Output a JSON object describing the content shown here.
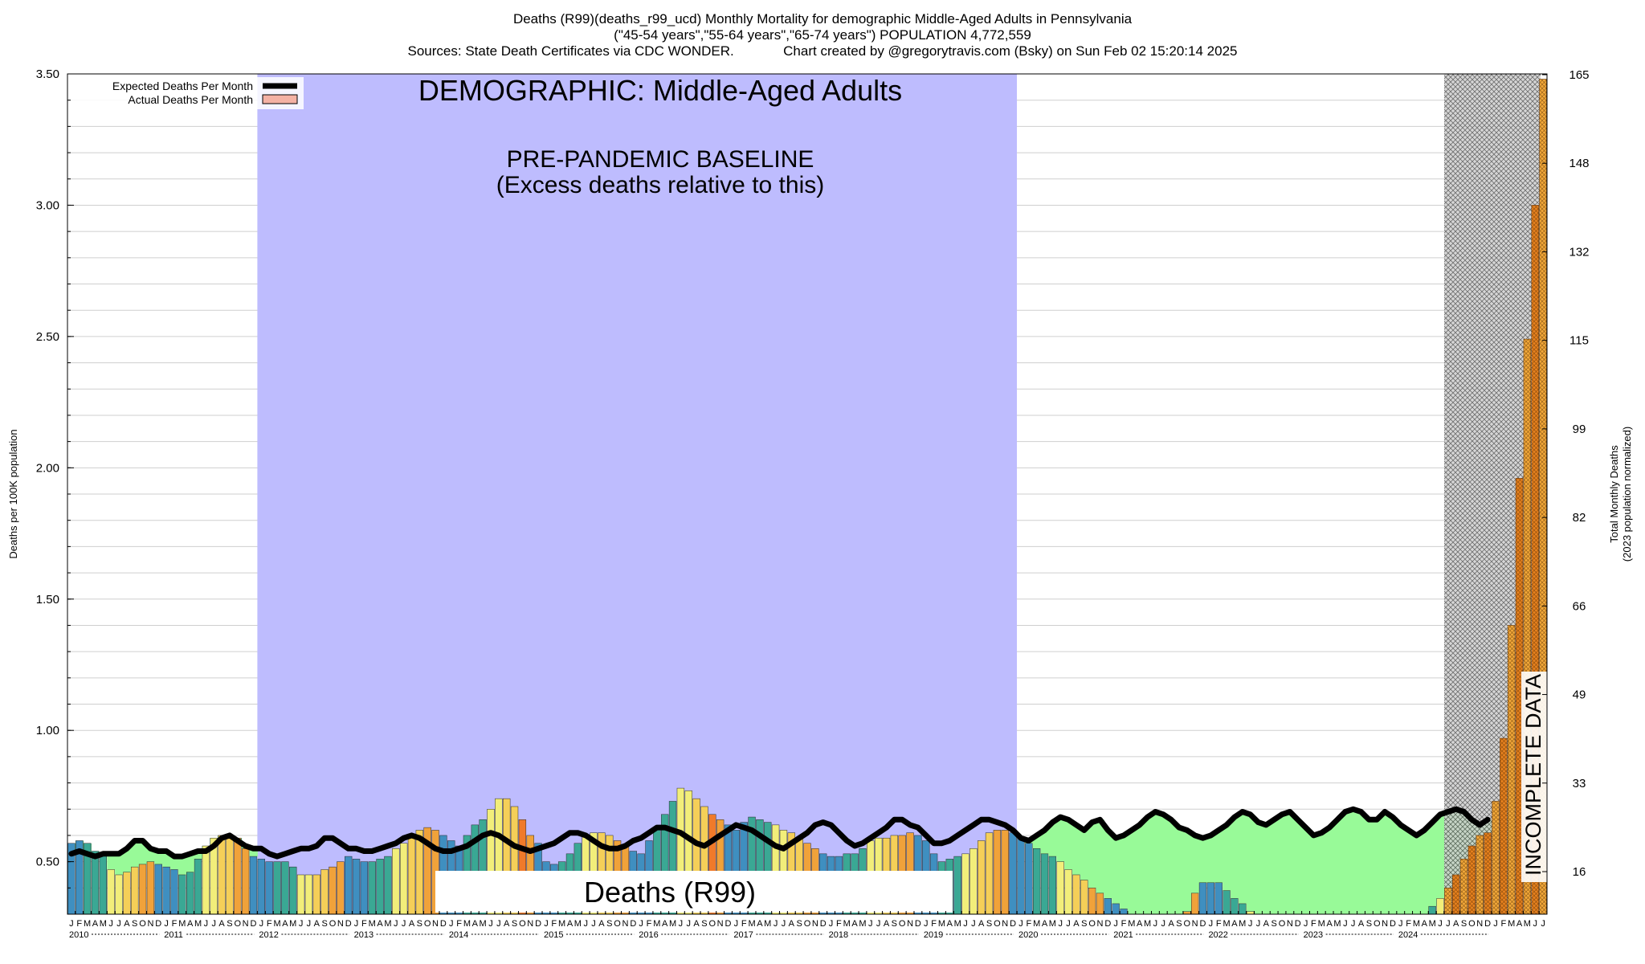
{
  "title": {
    "line1": "Deaths (R99)(deaths_r99_ucd) Monthly Mortality for demographic Middle-Aged Adults in Pennsylvania",
    "line2": "(\"45-54 years\",\"55-64 years\",\"65-74 years\") POPULATION 4,772,559",
    "line3": "Sources: State Death Certificates via CDC WONDER.             Chart created by @gregorytravis.com (Bsky) on Sun Feb 02 15:20:14 2025"
  },
  "overlay": {
    "demographic": "DEMOGRAPHIC: Middle-Aged Adults",
    "baseline_line1": "PRE-PANDEMIC BASELINE",
    "baseline_line2": "(Excess deaths relative to this)",
    "cause": "Deaths (R99)",
    "incomplete": "INCOMPLETE DATA"
  },
  "legend": {
    "expected": "Expected Deaths Per Month",
    "actual": "Actual Deaths Per Month"
  },
  "colors": {
    "baseline_region": "#bebcfe",
    "excess_fill": "#98fa98",
    "below_fill": "#70d8a0",
    "expected_line": "#000000",
    "incomplete_hatch": "#888888",
    "month_colors": [
      "#3f8fc0",
      "#3f8fc0",
      "#3aa894",
      "#3aa894",
      "#3aa894",
      "#f2ee7a",
      "#f2ee7a",
      "#f5cf58",
      "#f5cf58",
      "#f0a23a",
      "#f0a23a",
      "#3f8fc0"
    ]
  },
  "chart_data": {
    "type": "bar",
    "title": "Deaths (R99)(deaths_r99_ucd) Monthly Mortality for demographic Middle-Aged Adults in Pennsylvania",
    "ylabel": "Deaths per 100K population",
    "y2label_line1": "Total Monthly Deaths",
    "y2label_line2": "(2023 population normalized)",
    "ylim": [
      0.3,
      3.5
    ],
    "yticks": [
      "0.50",
      "1.00",
      "1.50",
      "2.00",
      "2.50",
      "3.00",
      "3.50"
    ],
    "y2ticks": [
      "16",
      "33",
      "49",
      "66",
      "82",
      "99",
      "115",
      "132",
      "148",
      "165"
    ],
    "grid": true,
    "legend_position": "top-left",
    "start": "2010-01",
    "month_letters": [
      "J",
      "F",
      "M",
      "A",
      "M",
      "J",
      "J",
      "A",
      "S",
      "O",
      "N",
      "D"
    ],
    "years": [
      "2010",
      "2011",
      "2012",
      "2013",
      "2014",
      "2015",
      "2016",
      "2017",
      "2018",
      "2019",
      "2020",
      "2021",
      "2022",
      "2023",
      "2024"
    ],
    "baseline_period": [
      "2012-01",
      "2019-12"
    ],
    "incomplete_from": "2024-07",
    "series": [
      {
        "name": "Actual Deaths Per Month",
        "values": [
          0.57,
          0.58,
          0.57,
          0.54,
          0.53,
          0.47,
          0.45,
          0.46,
          0.48,
          0.49,
          0.5,
          0.49,
          0.48,
          0.47,
          0.45,
          0.46,
          0.51,
          0.56,
          0.59,
          0.6,
          0.6,
          0.59,
          0.55,
          0.52,
          0.51,
          0.5,
          0.5,
          0.5,
          0.48,
          0.45,
          0.45,
          0.45,
          0.47,
          0.48,
          0.5,
          0.52,
          0.51,
          0.5,
          0.5,
          0.51,
          0.52,
          0.55,
          0.57,
          0.59,
          0.62,
          0.63,
          0.62,
          0.6,
          0.58,
          0.56,
          0.6,
          0.64,
          0.66,
          0.7,
          0.74,
          0.74,
          0.71,
          0.66,
          0.6,
          0.57,
          0.5,
          0.49,
          0.5,
          0.53,
          0.57,
          0.6,
          0.61,
          0.61,
          0.6,
          0.58,
          0.56,
          0.54,
          0.53,
          0.58,
          0.63,
          0.68,
          0.73,
          0.78,
          0.77,
          0.74,
          0.71,
          0.68,
          0.66,
          0.64,
          0.62,
          0.65,
          0.67,
          0.66,
          0.65,
          0.64,
          0.62,
          0.61,
          0.59,
          0.57,
          0.55,
          0.53,
          0.52,
          0.52,
          0.53,
          0.53,
          0.55,
          0.58,
          0.59,
          0.59,
          0.6,
          0.6,
          0.61,
          0.6,
          0.58,
          0.53,
          0.5,
          0.51,
          0.52,
          0.53,
          0.55,
          0.58,
          0.61,
          0.62,
          0.62,
          0.61,
          0.59,
          0.57,
          0.55,
          0.53,
          0.52,
          0.5,
          0.47,
          0.45,
          0.43,
          0.4,
          0.38,
          0.36,
          0.34,
          0.32,
          0.3,
          0.27,
          0.24,
          0.22,
          0.22,
          0.22,
          0.26,
          0.31,
          0.38,
          0.42,
          0.42,
          0.42,
          0.39,
          0.36,
          0.34,
          0.31,
          0.29,
          0.29,
          0.28,
          0.28,
          0.29,
          0.3,
          0.29,
          0.29,
          0.28,
          0.27,
          0.25,
          0.23,
          0.22,
          0.21,
          0.21,
          0.22,
          0.23,
          0.25,
          0.26,
          0.27,
          0.28,
          0.3,
          0.33,
          0.36,
          0.4,
          0.45,
          0.51,
          0.56,
          0.6,
          0.61,
          0.73,
          0.97,
          1.4,
          1.96,
          2.49,
          3.0,
          3.48
        ]
      },
      {
        "name": "Expected Deaths Per Month",
        "values": [
          0.53,
          0.54,
          0.53,
          0.52,
          0.53,
          0.53,
          0.53,
          0.55,
          0.58,
          0.58,
          0.55,
          0.54,
          0.54,
          0.52,
          0.52,
          0.53,
          0.54,
          0.54,
          0.56,
          0.59,
          0.6,
          0.58,
          0.56,
          0.55,
          0.55,
          0.53,
          0.52,
          0.53,
          0.54,
          0.55,
          0.55,
          0.56,
          0.59,
          0.59,
          0.57,
          0.55,
          0.55,
          0.54,
          0.54,
          0.55,
          0.56,
          0.57,
          0.59,
          0.6,
          0.59,
          0.57,
          0.55,
          0.54,
          0.54,
          0.55,
          0.56,
          0.58,
          0.6,
          0.61,
          0.6,
          0.58,
          0.56,
          0.55,
          0.54,
          0.55,
          0.56,
          0.57,
          0.59,
          0.61,
          0.61,
          0.6,
          0.58,
          0.56,
          0.55,
          0.55,
          0.56,
          0.58,
          0.59,
          0.61,
          0.63,
          0.63,
          0.62,
          0.61,
          0.59,
          0.57,
          0.56,
          0.58,
          0.6,
          0.62,
          0.64,
          0.63,
          0.62,
          0.6,
          0.58,
          0.56,
          0.55,
          0.57,
          0.59,
          0.61,
          0.64,
          0.65,
          0.64,
          0.61,
          0.58,
          0.56,
          0.57,
          0.59,
          0.61,
          0.63,
          0.66,
          0.66,
          0.64,
          0.63,
          0.6,
          0.57,
          0.57,
          0.58,
          0.6,
          0.62,
          0.64,
          0.66,
          0.66,
          0.65,
          0.64,
          0.62,
          0.59,
          0.58,
          0.6,
          0.62,
          0.65,
          0.67,
          0.66,
          0.64,
          0.62,
          0.65,
          0.66,
          0.62,
          0.59,
          0.6,
          0.62,
          0.64,
          0.67,
          0.69,
          0.68,
          0.66,
          0.63,
          0.62,
          0.6,
          0.59,
          0.6,
          0.62,
          0.64,
          0.67,
          0.69,
          0.68,
          0.65,
          0.64,
          0.66,
          0.68,
          0.69,
          0.66,
          0.63,
          0.6,
          0.61,
          0.63,
          0.66,
          0.69,
          0.7,
          0.69,
          0.66,
          0.66,
          0.69,
          0.67,
          0.64,
          0.62,
          0.6,
          0.62,
          0.65,
          0.68,
          0.69,
          0.7,
          0.69,
          0.66,
          0.64,
          0.66
        ]
      }
    ]
  }
}
